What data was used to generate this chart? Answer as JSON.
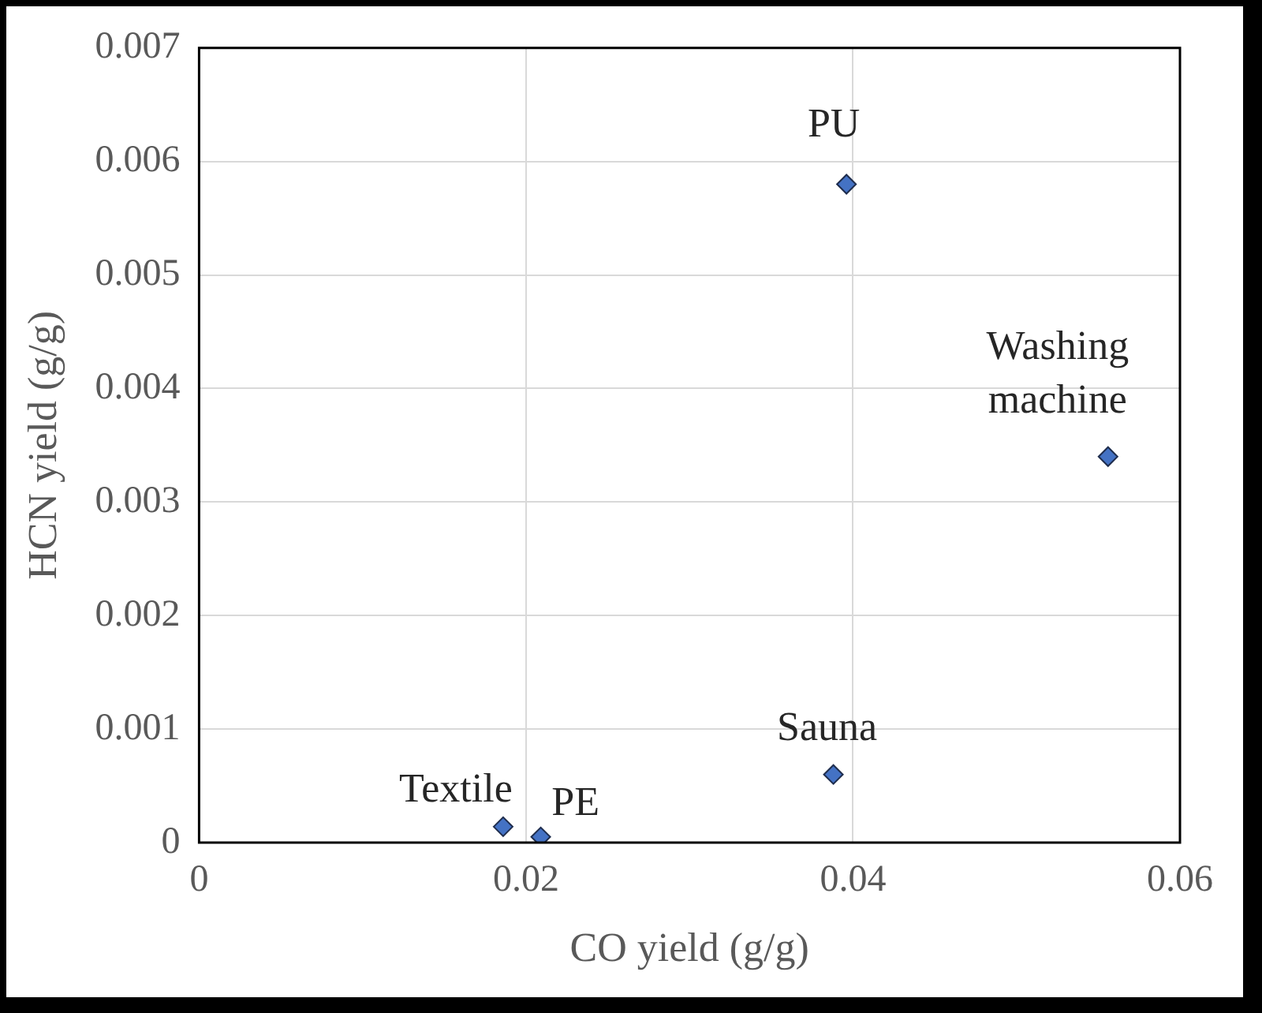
{
  "chart_data": {
    "type": "scatter",
    "xlabel": "CO yield (g/g)",
    "ylabel": "HCN yield (g/g)",
    "x": [
      0.0186,
      0.0209,
      0.0388,
      0.0396,
      0.0556
    ],
    "series": [
      {
        "color": "#4472c4",
        "values": [
          0.00014,
          5e-05,
          0.0006,
          0.0058,
          0.0034
        ]
      }
    ],
    "xlim": [
      0,
      0.06
    ],
    "xticks": [
      0,
      0.02,
      0.04,
      0.06
    ],
    "ylim": [
      0,
      0.007
    ],
    "yticks": [
      0,
      0.001,
      0.002,
      0.003,
      0.004,
      0.005,
      0.006,
      0.007
    ],
    "grid": true,
    "legend": false,
    "marker": "diamond",
    "annotations": [
      {
        "text": "Textile",
        "x": 0.0186,
        "y": 0.00014
      },
      {
        "text": "PE",
        "x": 0.0209,
        "y": 5e-05
      },
      {
        "text": "Sauna",
        "x": 0.0388,
        "y": 0.0006
      },
      {
        "text": "PU",
        "x": 0.0396,
        "y": 0.0058
      },
      {
        "text": "Washing machine",
        "x": 0.0556,
        "y": 0.0034
      }
    ]
  }
}
